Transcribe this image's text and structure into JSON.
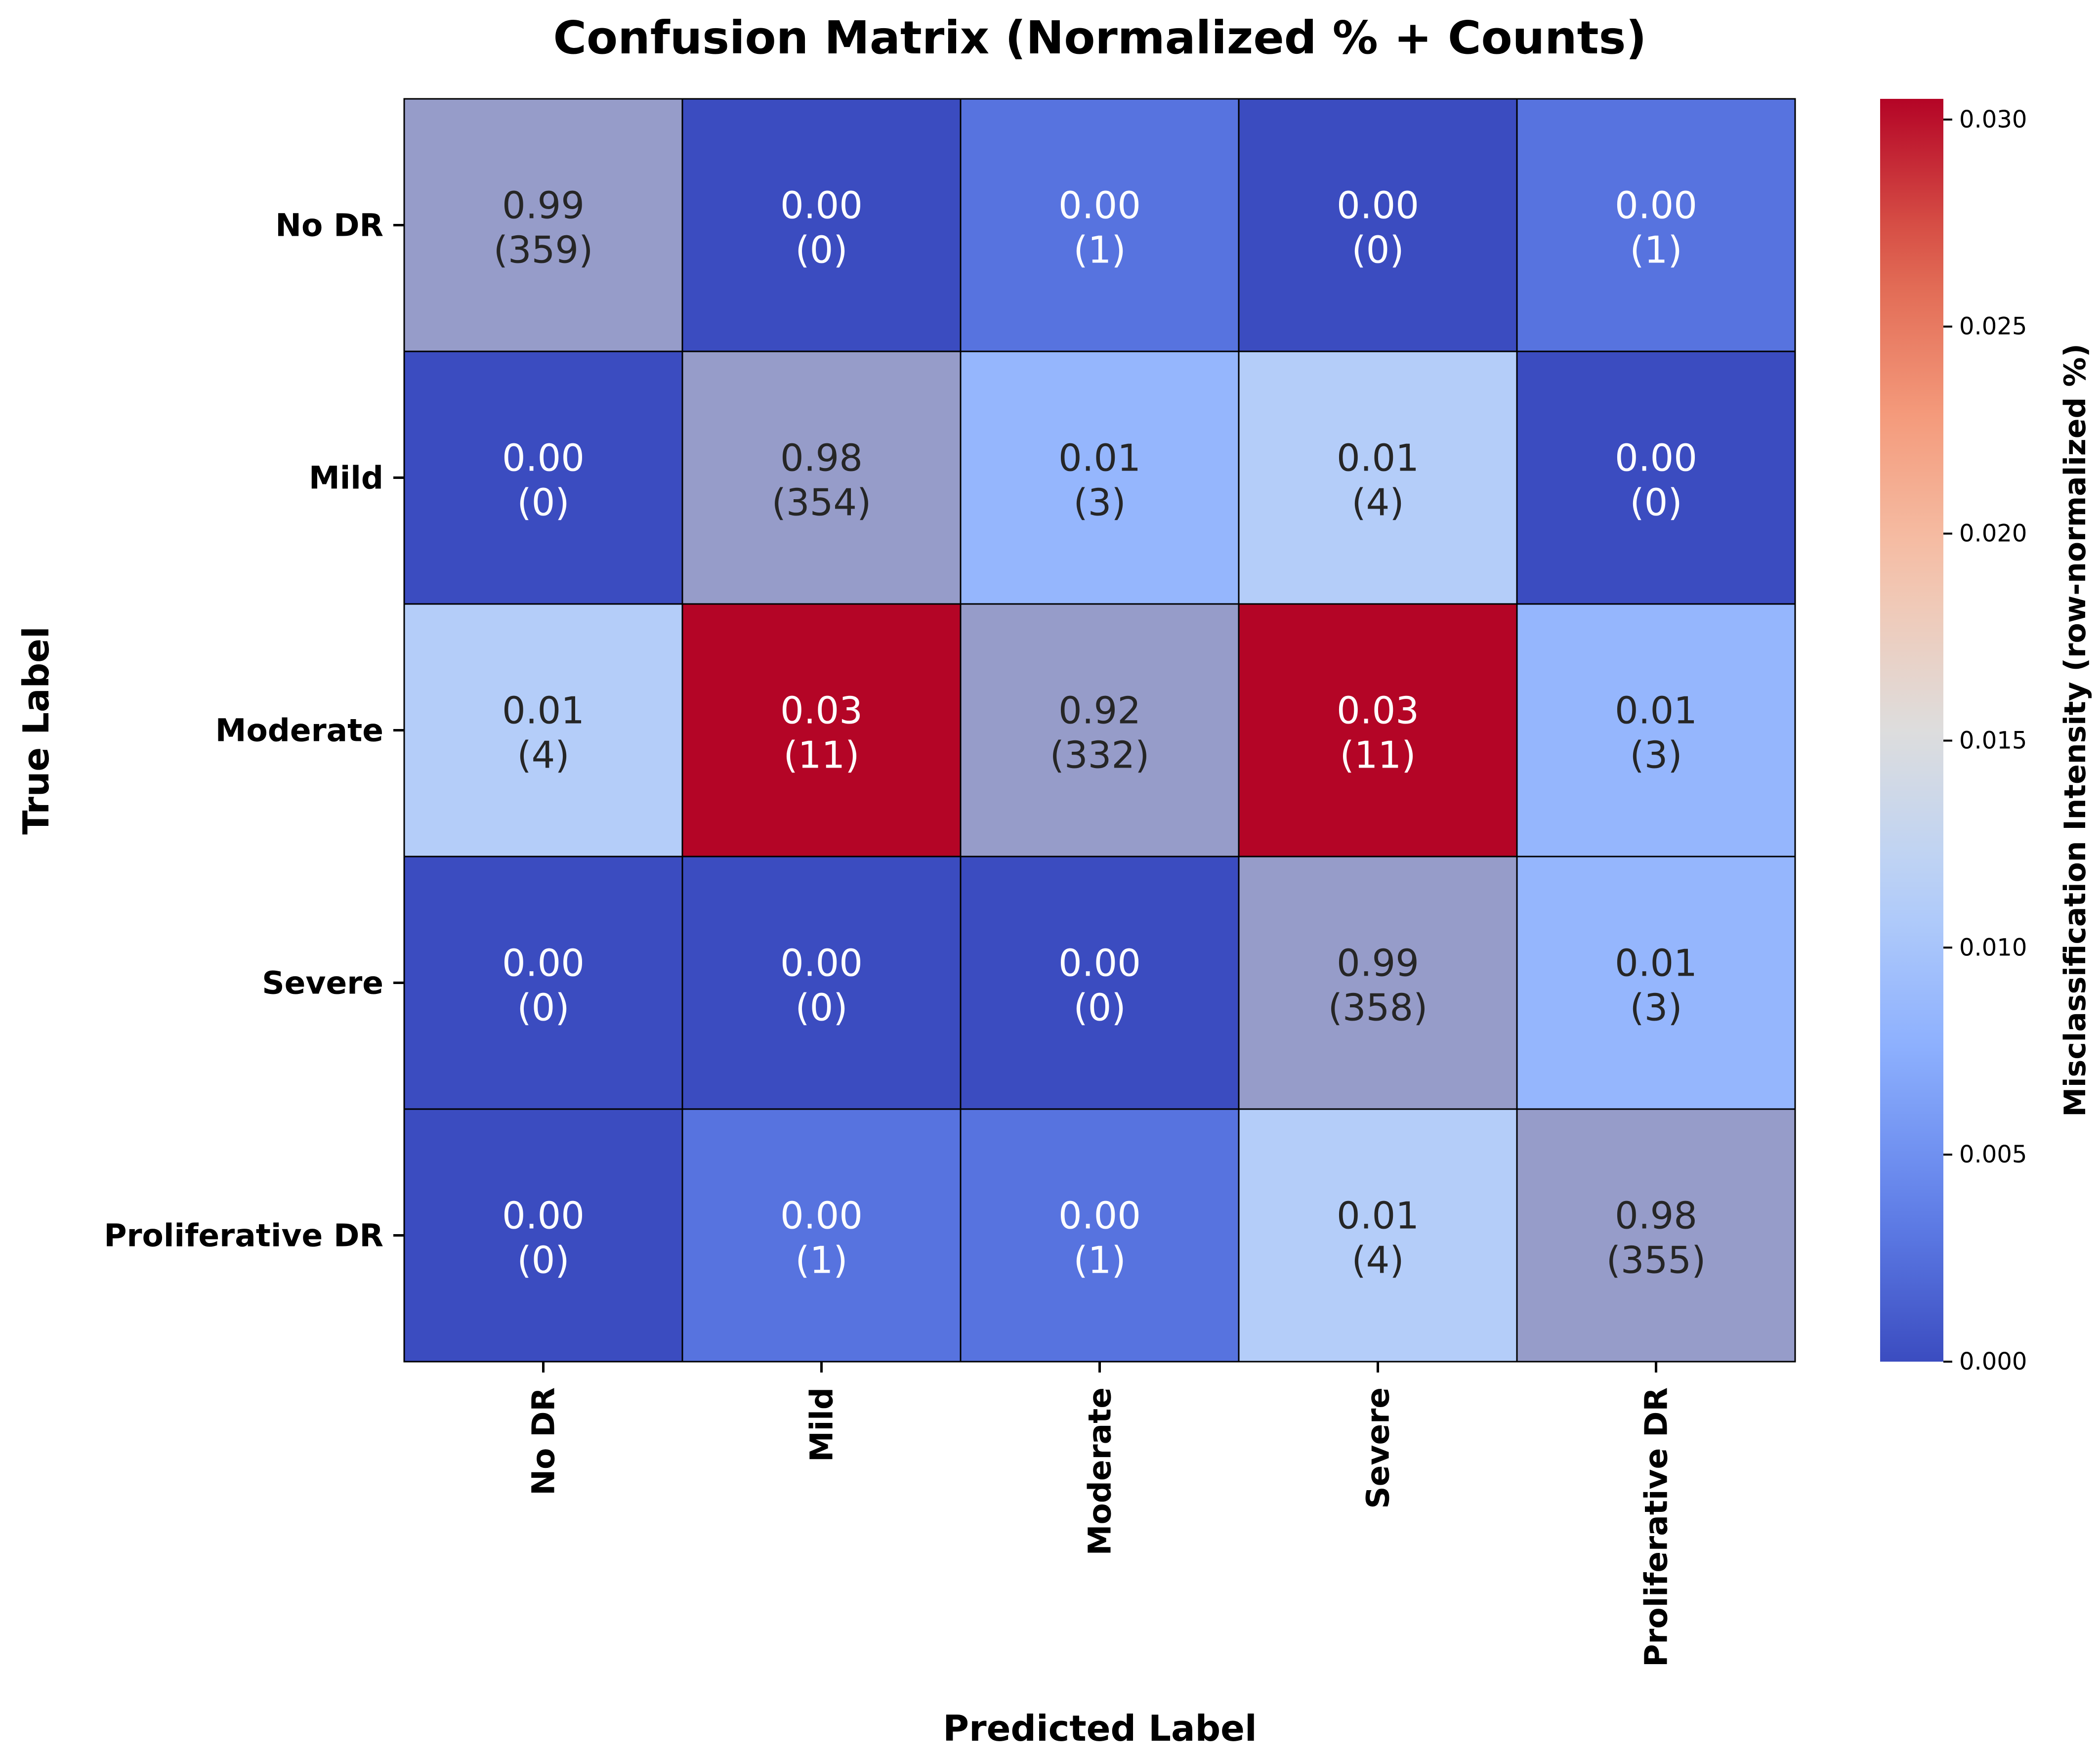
{
  "chart_data": {
    "type": "heatmap",
    "title": "Confusion Matrix (Normalized % + Counts)",
    "xlabel": "Predicted Label",
    "ylabel": "True Label",
    "x_categories": [
      "No DR",
      "Mild",
      "Moderate",
      "Severe",
      "Proliferative DR"
    ],
    "y_categories": [
      "No DR",
      "Mild",
      "Moderate",
      "Severe",
      "Proliferative DR"
    ],
    "normalized": [
      [
        0.99,
        0.0,
        0.0,
        0.0,
        0.0
      ],
      [
        0.0,
        0.98,
        0.01,
        0.01,
        0.0
      ],
      [
        0.01,
        0.03,
        0.92,
        0.03,
        0.01
      ],
      [
        0.0,
        0.0,
        0.0,
        0.99,
        0.01
      ],
      [
        0.0,
        0.0,
        0.0,
        0.01,
        0.98
      ]
    ],
    "normalized_labels": [
      [
        "0.99",
        "0.00",
        "0.00",
        "0.00",
        "0.00"
      ],
      [
        "0.00",
        "0.98",
        "0.01",
        "0.01",
        "0.00"
      ],
      [
        "0.01",
        "0.03",
        "0.92",
        "0.03",
        "0.01"
      ],
      [
        "0.00",
        "0.00",
        "0.00",
        "0.99",
        "0.01"
      ],
      [
        "0.00",
        "0.00",
        "0.00",
        "0.01",
        "0.98"
      ]
    ],
    "counts": [
      [
        359,
        0,
        1,
        0,
        1
      ],
      [
        0,
        354,
        3,
        4,
        0
      ],
      [
        4,
        11,
        332,
        11,
        3
      ],
      [
        0,
        0,
        0,
        358,
        3
      ],
      [
        0,
        1,
        1,
        4,
        355
      ]
    ],
    "diagonal_color": "#969cc9",
    "colorbar": {
      "label": "Misclassification Intensity (row-normalized %)",
      "colormap": "coolwarm",
      "range": [
        0,
        0.0305
      ],
      "ticks": [
        0.0,
        0.005,
        0.01,
        0.015,
        0.02,
        0.025,
        0.03
      ],
      "tick_labels": [
        "0.000",
        "0.005",
        "0.010",
        "0.015",
        "0.020",
        "0.025",
        "0.030"
      ]
    }
  }
}
